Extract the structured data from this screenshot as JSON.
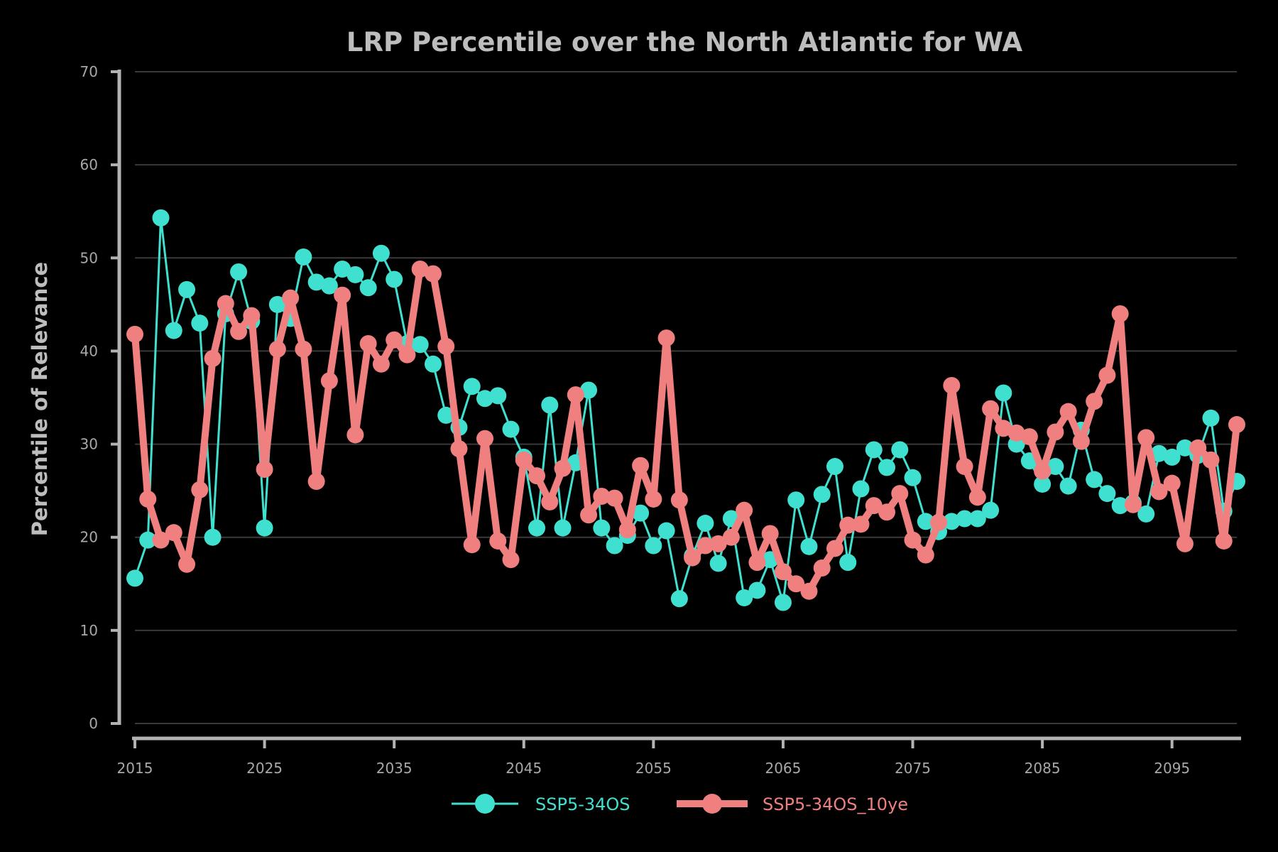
{
  "chart_data": {
    "type": "line",
    "title": "LRP Percentile over the North Atlantic for WA",
    "xlabel": "",
    "ylabel": "Percentile of Relevance",
    "xlim": [
      2015,
      2100
    ],
    "ylim": [
      0,
      70
    ],
    "x_ticks": [
      "2015",
      "2025",
      "2035",
      "2045",
      "2055",
      "2065",
      "2075",
      "2085",
      "2095"
    ],
    "y_ticks": [
      "0",
      "10",
      "20",
      "30",
      "40",
      "50",
      "60",
      "70"
    ],
    "grid": "horizontal",
    "legend_position": "bottom",
    "background": "#000000",
    "x": [
      2015,
      2016,
      2017,
      2018,
      2019,
      2020,
      2021,
      2022,
      2023,
      2024,
      2025,
      2026,
      2027,
      2028,
      2029,
      2030,
      2031,
      2032,
      2033,
      2034,
      2035,
      2036,
      2037,
      2038,
      2039,
      2040,
      2041,
      2042,
      2043,
      2044,
      2045,
      2046,
      2047,
      2048,
      2049,
      2050,
      2051,
      2052,
      2053,
      2054,
      2055,
      2056,
      2057,
      2058,
      2059,
      2060,
      2061,
      2062,
      2063,
      2064,
      2065,
      2066,
      2067,
      2068,
      2069,
      2070,
      2071,
      2072,
      2073,
      2074,
      2075,
      2076,
      2077,
      2078,
      2079,
      2080,
      2081,
      2082,
      2083,
      2084,
      2085,
      2086,
      2087,
      2088,
      2089,
      2090,
      2091,
      2092,
      2093,
      2094,
      2095,
      2096,
      2097,
      2098,
      2099,
      2100
    ],
    "series": [
      {
        "name": "SSP5-34OS",
        "color": "#40e0d0",
        "values": [
          15.6,
          19.7,
          54.3,
          42.2,
          46.6,
          43.0,
          20.0,
          44.0,
          48.5,
          43.2,
          21.0,
          45.0,
          43.5,
          50.1,
          47.4,
          47.0,
          48.8,
          48.2,
          46.8,
          50.5,
          47.7,
          40.8,
          40.7,
          38.6,
          33.1,
          31.8,
          36.2,
          34.9,
          35.2,
          31.6,
          28.6,
          21.0,
          34.2,
          21.0,
          28.0,
          35.8,
          21.0,
          19.1,
          20.2,
          22.6,
          19.1,
          20.7,
          13.4,
          18.0,
          21.5,
          17.2,
          22.0,
          13.5,
          14.3,
          17.6,
          13.0,
          24.0,
          19.0,
          24.6,
          27.6,
          17.3,
          25.2,
          29.4,
          27.5,
          29.4,
          26.4,
          21.7,
          20.6,
          21.7,
          22.0,
          22.0,
          22.9,
          35.5,
          30.0,
          28.2,
          25.7,
          27.6,
          25.5,
          31.5,
          26.2,
          24.7,
          23.4,
          23.7,
          22.5,
          29.0,
          28.6,
          29.6,
          28.8,
          32.8,
          22.8,
          26.0
        ]
      },
      {
        "name": "SSP5-34OS_10ye",
        "color": "#f08080",
        "values": [
          41.8,
          24.1,
          19.7,
          20.5,
          17.1,
          25.1,
          39.2,
          45.1,
          42.1,
          43.8,
          27.3,
          40.2,
          45.7,
          40.2,
          26.0,
          36.8,
          46.0,
          31.0,
          40.8,
          38.6,
          41.2,
          39.6,
          48.8,
          48.3,
          40.5,
          29.5,
          19.2,
          30.6,
          19.6,
          17.6,
          28.3,
          26.6,
          23.8,
          27.4,
          35.3,
          22.4,
          24.4,
          24.2,
          20.8,
          27.7,
          24.1,
          41.4,
          24.0,
          17.8,
          19.1,
          19.3,
          20.0,
          22.9,
          17.3,
          20.4,
          16.3,
          15.0,
          14.2,
          16.7,
          18.8,
          21.3,
          21.4,
          23.4,
          22.7,
          24.7,
          19.7,
          18.1,
          21.6,
          36.3,
          27.6,
          24.3,
          33.8,
          31.7,
          31.2,
          30.8,
          27.1,
          31.3,
          33.5,
          30.3,
          34.6,
          37.4,
          44.0,
          23.5,
          30.7,
          24.9,
          25.8,
          19.3,
          29.6,
          28.3,
          19.6,
          32.1
        ]
      }
    ]
  }
}
